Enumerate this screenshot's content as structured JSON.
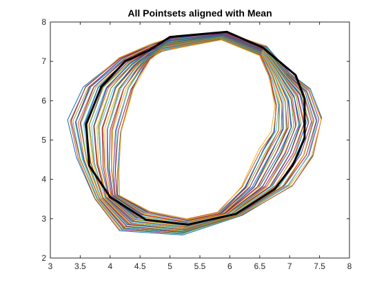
{
  "chart_data": {
    "type": "line",
    "title": "All Pointsets aligned with Mean",
    "xlabel": "",
    "ylabel": "",
    "xlim": [
      3,
      8
    ],
    "ylim": [
      2,
      8
    ],
    "xticks": [
      3,
      3.5,
      4,
      4.5,
      5,
      5.5,
      6,
      6.5,
      7,
      7.5,
      8
    ],
    "yticks": [
      2,
      3,
      4,
      5,
      6,
      7,
      8
    ],
    "xtick_labels": [
      "3",
      "3.5",
      "4",
      "4.5",
      "5",
      "5.5",
      "6",
      "6.5",
      "7",
      "7.5",
      "8"
    ],
    "ytick_labels": [
      "2",
      "3",
      "4",
      "5",
      "6",
      "7",
      "8"
    ],
    "grid": false,
    "legend": "none",
    "mean_color": "#000000",
    "palette": [
      "#0072BD",
      "#D95319",
      "#EDB120",
      "#7E2F8E",
      "#77AC30",
      "#4DBEEE",
      "#A2142F"
    ],
    "outer_ring": [
      [
        5.1,
        7.65
      ],
      [
        5.9,
        7.75
      ],
      [
        6.6,
        7.4
      ],
      [
        7.0,
        6.7
      ],
      [
        7.35,
        6.3
      ],
      [
        7.55,
        5.55
      ],
      [
        7.4,
        4.6
      ],
      [
        7.05,
        3.85
      ],
      [
        6.2,
        3.1
      ],
      [
        5.2,
        2.6
      ],
      [
        4.15,
        2.7
      ],
      [
        3.75,
        3.5
      ],
      [
        3.45,
        4.55
      ],
      [
        3.3,
        5.5
      ],
      [
        3.55,
        6.35
      ],
      [
        4.15,
        7.1
      ],
      [
        4.7,
        7.45
      ]
    ],
    "inner_ring": [
      [
        4.85,
        7.25
      ],
      [
        5.85,
        7.55
      ],
      [
        6.5,
        7.15
      ],
      [
        6.65,
        6.6
      ],
      [
        6.75,
        5.85
      ],
      [
        6.7,
        5.2
      ],
      [
        6.5,
        4.75
      ],
      [
        6.2,
        3.8
      ],
      [
        5.8,
        3.15
      ],
      [
        5.3,
        3.0
      ],
      [
        4.65,
        3.2
      ],
      [
        4.15,
        3.6
      ],
      [
        4.15,
        4.2
      ],
      [
        4.2,
        5.2
      ],
      [
        4.4,
        6.3
      ],
      [
        4.55,
        6.75
      ],
      [
        4.65,
        7.05
      ]
    ],
    "mean_shape": [
      [
        5.0,
        7.62
      ],
      [
        5.95,
        7.75
      ],
      [
        6.55,
        7.35
      ],
      [
        7.1,
        6.65
      ],
      [
        7.25,
        6.05
      ],
      [
        7.25,
        5.05
      ],
      [
        7.05,
        4.35
      ],
      [
        6.75,
        3.75
      ],
      [
        6.1,
        3.12
      ],
      [
        5.3,
        2.85
      ],
      [
        4.6,
        2.97
      ],
      [
        4.0,
        3.55
      ],
      [
        3.65,
        4.35
      ],
      [
        3.6,
        5.4
      ],
      [
        3.85,
        6.35
      ],
      [
        4.25,
        7.0
      ],
      [
        4.65,
        7.28
      ]
    ],
    "pointset_count": 45
  }
}
